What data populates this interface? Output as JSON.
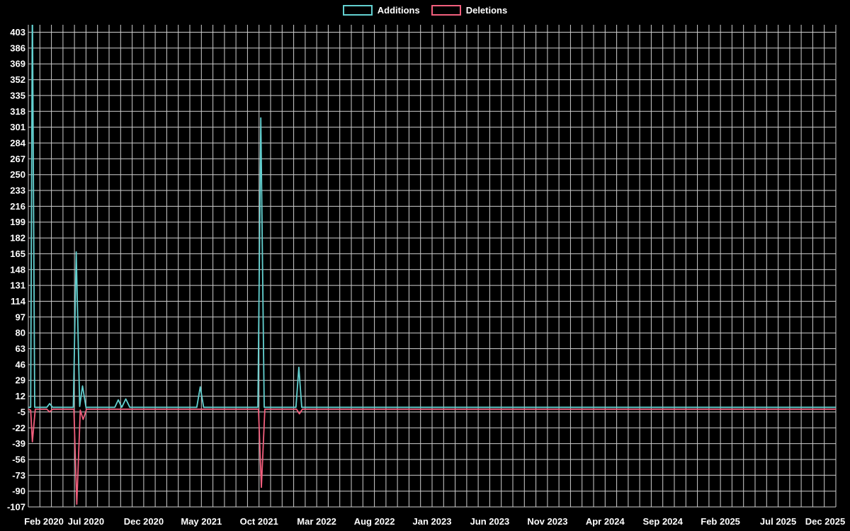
{
  "chart_data": {
    "type": "line",
    "title": "",
    "description": "Weekly additions and deletions line chart (code frequency), white grid on black background",
    "background_color": "#000000",
    "grid_color": "#cfcfcf",
    "text_color": "#ffffff",
    "legend": {
      "position": "top-center",
      "entries": [
        "Additions",
        "Deletions"
      ]
    },
    "x_axis": {
      "unit": "months since Feb 2020",
      "months_total": 70,
      "tick_interval_months": 5,
      "tick_labels": [
        "Feb 2020",
        "Jul 2020",
        "Dec 2020",
        "May 2021",
        "Oct 2021",
        "Mar 2022",
        "Aug 2022",
        "Jan 2023",
        "Jun 2023",
        "Nov 2023",
        "Apr 2024",
        "Sep 2024",
        "Feb 2025",
        "Jul 2025",
        "Dec 2025"
      ],
      "grid_every_month": true
    },
    "y_axis": {
      "tick_step": 17,
      "ticks": [
        403,
        386,
        369,
        352,
        335,
        318,
        301,
        284,
        267,
        250,
        233,
        216,
        199,
        182,
        165,
        148,
        131,
        114,
        97,
        80,
        63,
        46,
        29,
        12,
        -5,
        -22,
        -39,
        -56,
        -73,
        -90,
        -107
      ],
      "ylim": [
        -107,
        411
      ]
    },
    "series": [
      {
        "name": "Additions",
        "color": "#63d0d0",
        "clipped_at_top": true,
        "points": [
          [
            0,
            0
          ],
          [
            0.2,
            0
          ],
          [
            0.35,
            440
          ],
          [
            0.55,
            0
          ],
          [
            1.6,
            0
          ],
          [
            1.85,
            4
          ],
          [
            2.1,
            0
          ],
          [
            3.9,
            0
          ],
          [
            4.15,
            167
          ],
          [
            4.45,
            1
          ],
          [
            4.7,
            23
          ],
          [
            5.0,
            0
          ],
          [
            7.5,
            0
          ],
          [
            7.8,
            8
          ],
          [
            8.1,
            0
          ],
          [
            8.45,
            9
          ],
          [
            8.8,
            0
          ],
          [
            14.6,
            0
          ],
          [
            14.9,
            22
          ],
          [
            15.2,
            0
          ],
          [
            19.9,
            0
          ],
          [
            20.15,
            311
          ],
          [
            20.45,
            0
          ],
          [
            23.2,
            0
          ],
          [
            23.45,
            43
          ],
          [
            23.7,
            0
          ],
          [
            70,
            0
          ]
        ]
      },
      {
        "name": "Deletions",
        "color": "#f25f7d",
        "points": [
          [
            0,
            -2
          ],
          [
            0.2,
            -3
          ],
          [
            0.35,
            -37
          ],
          [
            0.6,
            -2
          ],
          [
            1.6,
            -2
          ],
          [
            1.85,
            -5
          ],
          [
            2.1,
            -2
          ],
          [
            3.95,
            -2
          ],
          [
            4.2,
            -104
          ],
          [
            4.5,
            -3
          ],
          [
            4.75,
            -13
          ],
          [
            5.05,
            -2
          ],
          [
            14.9,
            -2
          ],
          [
            19.95,
            -2
          ],
          [
            20.2,
            -86
          ],
          [
            20.5,
            -2
          ],
          [
            23.25,
            -2
          ],
          [
            23.5,
            -7
          ],
          [
            23.75,
            -2
          ],
          [
            70,
            -2
          ]
        ]
      }
    ]
  }
}
